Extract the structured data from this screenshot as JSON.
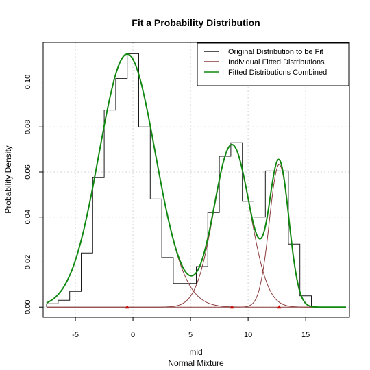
{
  "chart_data": {
    "type": "line",
    "title": "Fit a Probability Distribution",
    "xlabel": "mid",
    "subxlabel": "Normal Mixture",
    "ylabel": "Probability Density",
    "xlim": [
      -7.8,
      18.8
    ],
    "ylim": [
      -0.0045,
      0.1175
    ],
    "x_ticks": [
      -5,
      0,
      5,
      10,
      15
    ],
    "x_tick_labels": [
      "-5",
      "0",
      "5",
      "10",
      "15"
    ],
    "y_ticks": [
      0.0,
      0.02,
      0.04,
      0.06,
      0.08,
      0.1
    ],
    "y_tick_labels": [
      "0.00",
      "0.02",
      "0.04",
      "0.06",
      "0.08",
      "0.10"
    ],
    "grid": true,
    "legend_position": "top-right",
    "legend": [
      {
        "label": "Original Distribution to be Fit",
        "color": "#1a1a1a"
      },
      {
        "label": "Individual Fitted Distributions",
        "color": "#8b3a3a"
      },
      {
        "label": "Fitted Distributions Combined",
        "color": "#118811"
      }
    ],
    "histogram": {
      "edges": [
        -7.5,
        -6.5,
        -5.5,
        -4.5,
        -3.5,
        -2.5,
        -1.5,
        -0.5,
        0.5,
        1.5,
        2.5,
        3.5,
        4.5,
        5.5,
        6.5,
        7.5,
        8.5,
        9.5,
        10.5,
        11.5,
        12.5,
        13.5,
        14.5,
        15.5
      ],
      "densities": [
        0.0015,
        0.003,
        0.007,
        0.024,
        0.0575,
        0.0875,
        0.1015,
        0.1125,
        0.08,
        0.048,
        0.022,
        0.0105,
        0.0105,
        0.018,
        0.042,
        0.067,
        0.073,
        0.047,
        0.04,
        0.0605,
        0.0605,
        0.028,
        0.005
      ]
    },
    "components": [
      {
        "mean": -0.5,
        "sd": 2.45,
        "weight": 0.69
      },
      {
        "mean": 8.6,
        "sd": 1.55,
        "weight": 0.28
      },
      {
        "mean": 12.7,
        "sd": 0.85,
        "weight": 0.135
      }
    ],
    "component_means": [
      -0.5,
      8.6,
      12.7
    ],
    "curve_x_range": [
      -7.5,
      18.5
    ]
  }
}
